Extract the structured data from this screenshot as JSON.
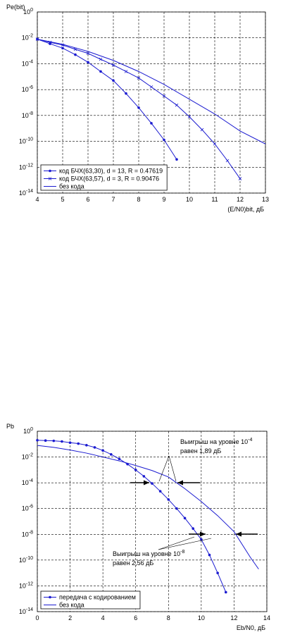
{
  "chart_data": [
    {
      "type": "line",
      "ylabel": "Pe(bit)",
      "xlabel": "(E/N0)bit, дБ",
      "xlim": [
        4,
        13
      ],
      "xticks": [
        4,
        5,
        6,
        7,
        8,
        9,
        10,
        11,
        12,
        13
      ],
      "ylim": [
        1e-14,
        1
      ],
      "log_y": true,
      "grid": true,
      "legend": "lower left",
      "yticks": [
        {
          "value": 1,
          "label": "10^0"
        },
        {
          "value": 0.01,
          "label": "10^-2"
        },
        {
          "value": 0.0001,
          "label": "10^-4"
        },
        {
          "value": 1e-06,
          "label": "10^-6"
        },
        {
          "value": 1e-08,
          "label": "10^-8"
        },
        {
          "value": 1e-10,
          "label": "10^-10"
        },
        {
          "value": 1e-12,
          "label": "10^-12"
        },
        {
          "value": 1e-14,
          "label": "10^-14"
        }
      ],
      "series": [
        {
          "name": "код БЧХ(63,30), d = 13, R = 0.47619",
          "color": "#1a1ad0",
          "marker": "dot",
          "x": [
            4,
            4.5,
            5,
            5.5,
            6,
            6.5,
            7,
            7.5,
            8,
            8.5,
            9,
            9.5
          ],
          "values": [
            0.0079,
            0.0035,
            0.0016,
            0.0005,
            0.00013,
            2.5e-05,
            5e-06,
            5e-07,
            4e-08,
            2.5e-09,
            1.3e-10,
            4e-12
          ]
        },
        {
          "name": "код БЧХ(63,57), d = 3, R = 0.90476",
          "color": "#1a1ad0",
          "marker": "x",
          "x": [
            4,
            4.5,
            5,
            5.5,
            6,
            6.5,
            7,
            7.5,
            8,
            8.5,
            9,
            9.5,
            10,
            10.5,
            11,
            11.5,
            12
          ],
          "values": [
            0.0079,
            0.0045,
            0.0028,
            0.0013,
            0.00063,
            0.00022,
            7.9e-05,
            2.5e-05,
            7.9e-06,
            1.6e-06,
            3.2e-07,
            6.3e-08,
            7.9e-09,
            7.9e-10,
            6.3e-11,
            3.2e-12,
            1.3e-13
          ]
        },
        {
          "name": "без кода",
          "color": "#1a1ad0",
          "marker": null,
          "x": [
            4,
            5,
            6,
            7,
            8,
            9,
            10,
            11,
            12,
            13
          ],
          "values": [
            0.0079,
            0.0032,
            0.00089,
            0.00018,
            2.5e-05,
            2.5e-06,
            1.8e-07,
            1.3e-08,
            6.3e-10,
            6.3e-11
          ]
        }
      ]
    },
    {
      "type": "line",
      "ylabel": "Pb",
      "xlabel": "Eb/N0, дБ",
      "xlim": [
        0,
        14
      ],
      "xticks": [
        0,
        2,
        4,
        6,
        8,
        10,
        12,
        14
      ],
      "ylim": [
        1e-14,
        1
      ],
      "log_y": true,
      "grid": true,
      "legend": "lower left",
      "yticks": [
        {
          "value": 1,
          "label": "10^0"
        },
        {
          "value": 0.01,
          "label": "10^-2"
        },
        {
          "value": 0.0001,
          "label": "10^-4"
        },
        {
          "value": 1e-06,
          "label": "10^-6"
        },
        {
          "value": 1e-08,
          "label": "10^-8"
        },
        {
          "value": 1e-10,
          "label": "10^-10"
        },
        {
          "value": 1e-12,
          "label": "10^-12"
        },
        {
          "value": 1e-14,
          "label": "10^-14"
        }
      ],
      "annotations": [
        "Выигрыш на уровне 10^-4",
        "равен 1,89 дБ",
        "Выигрыш на уровне 10^-8",
        "равен 2,56 дБ"
      ],
      "series": [
        {
          "name": "передача с кодированием",
          "color": "#1a1ad0",
          "marker": "dot",
          "x": [
            0,
            0.5,
            1,
            1.5,
            2,
            2.5,
            3,
            3.5,
            4,
            4.5,
            5,
            5.5,
            6,
            6.5,
            7,
            7.5,
            8,
            8.5,
            9,
            9.5,
            10,
            10.5,
            11,
            11.5
          ],
          "values": [
            0.2,
            0.19,
            0.18,
            0.16,
            0.13,
            0.11,
            0.083,
            0.056,
            0.032,
            0.016,
            0.0071,
            0.0028,
            0.001,
            0.00032,
            8.9e-05,
            2.2e-05,
            5e-06,
            1e-06,
            1.8e-07,
            2.8e-08,
            4e-09,
            2.5e-10,
            1e-11,
            3.2e-13
          ]
        },
        {
          "name": "без кода",
          "color": "#1a1ad0",
          "marker": null,
          "x": [
            0,
            1,
            2,
            3,
            4,
            5,
            6,
            7,
            8,
            9,
            10,
            11,
            12,
            13,
            13.5
          ],
          "values": [
            0.079,
            0.056,
            0.035,
            0.02,
            0.01,
            0.005,
            0.0022,
            0.00089,
            0.00028,
            3.5e-05,
            3.5e-06,
            2.8e-07,
            1.6e-08,
            1.6e-10,
            2e-11
          ]
        }
      ]
    }
  ]
}
